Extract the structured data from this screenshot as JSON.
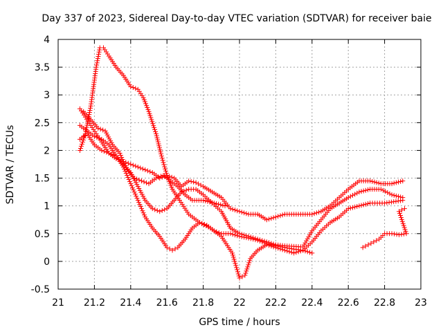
{
  "chart_data": {
    "type": "scatter",
    "title": "Day 337 of 2023, Sidereal Day-to-day VTEC variation (SDTVAR) for receiver baie",
    "xlabel": "GPS time / hours",
    "ylabel": "SDTVAR / TECUs",
    "xlim": [
      21,
      23
    ],
    "ylim": [
      -0.5,
      4
    ],
    "xticks": [
      21,
      21.2,
      21.4,
      21.6,
      21.8,
      22,
      22.2,
      22.4,
      22.6,
      22.8,
      23
    ],
    "xtick_labels": [
      "21",
      "21.2",
      "21.4",
      "21.6",
      "21.8",
      "22",
      "22.2",
      "22.4",
      "22.6",
      "22.8",
      "23"
    ],
    "yticks": [
      -0.5,
      0,
      0.5,
      1,
      1.5,
      2,
      2.5,
      3,
      3.5,
      4
    ],
    "ytick_labels": [
      "-0.5",
      "0",
      "0.5",
      "1",
      "1.5",
      "2",
      "2.5",
      "3",
      "3.5",
      "4"
    ],
    "grid": true,
    "marker": "+",
    "marker_color": "#ff0000",
    "series": [
      {
        "name": "track-1",
        "points": [
          [
            21.12,
            2.0
          ],
          [
            21.15,
            2.3
          ],
          [
            21.18,
            2.8
          ],
          [
            21.21,
            3.5
          ],
          [
            21.23,
            3.85
          ],
          [
            21.25,
            3.85
          ],
          [
            21.28,
            3.7
          ],
          [
            21.32,
            3.5
          ],
          [
            21.36,
            3.35
          ],
          [
            21.4,
            3.15
          ],
          [
            21.44,
            3.1
          ],
          [
            21.47,
            2.95
          ],
          [
            21.5,
            2.7
          ],
          [
            21.54,
            2.3
          ],
          [
            21.57,
            1.9
          ],
          [
            21.6,
            1.55
          ],
          [
            21.63,
            1.3
          ],
          [
            21.67,
            1.1
          ],
          [
            21.72,
            0.85
          ],
          [
            21.78,
            0.7
          ],
          [
            21.84,
            0.6
          ],
          [
            21.9,
            0.45
          ],
          [
            21.96,
            0.15
          ],
          [
            22.0,
            -0.3
          ],
          [
            22.03,
            -0.25
          ],
          [
            22.06,
            0.05
          ],
          [
            22.1,
            0.2
          ],
          [
            22.15,
            0.3
          ],
          [
            22.2,
            0.25
          ],
          [
            22.25,
            0.2
          ],
          [
            22.3,
            0.15
          ],
          [
            22.35,
            0.2
          ],
          [
            22.4,
            0.35
          ],
          [
            22.45,
            0.55
          ],
          [
            22.5,
            0.7
          ],
          [
            22.55,
            0.8
          ],
          [
            22.6,
            0.95
          ],
          [
            22.66,
            1.0
          ],
          [
            22.72,
            1.05
          ],
          [
            22.8,
            1.05
          ],
          [
            22.9,
            1.1
          ]
        ]
      },
      {
        "name": "track-2",
        "points": [
          [
            21.12,
            2.75
          ],
          [
            21.15,
            2.6
          ],
          [
            21.18,
            2.45
          ],
          [
            21.21,
            2.3
          ],
          [
            21.24,
            2.15
          ],
          [
            21.28,
            1.95
          ],
          [
            21.32,
            1.85
          ],
          [
            21.36,
            1.8
          ],
          [
            21.4,
            1.75
          ],
          [
            21.44,
            1.7
          ],
          [
            21.48,
            1.65
          ],
          [
            21.52,
            1.6
          ],
          [
            21.56,
            1.5
          ],
          [
            21.6,
            1.55
          ],
          [
            21.64,
            1.5
          ],
          [
            21.68,
            1.35
          ],
          [
            21.72,
            1.45
          ],
          [
            21.76,
            1.42
          ],
          [
            21.8,
            1.35
          ],
          [
            21.85,
            1.25
          ],
          [
            21.9,
            1.15
          ],
          [
            21.95,
            0.95
          ],
          [
            22.0,
            0.9
          ],
          [
            22.05,
            0.85
          ],
          [
            22.1,
            0.85
          ],
          [
            22.15,
            0.75
          ],
          [
            22.2,
            0.8
          ],
          [
            22.25,
            0.85
          ],
          [
            22.3,
            0.85
          ],
          [
            22.35,
            0.85
          ],
          [
            22.4,
            0.85
          ],
          [
            22.45,
            0.9
          ],
          [
            22.5,
            1.0
          ],
          [
            22.55,
            1.15
          ],
          [
            22.6,
            1.3
          ],
          [
            22.66,
            1.45
          ],
          [
            22.72,
            1.45
          ],
          [
            22.78,
            1.4
          ],
          [
            22.84,
            1.4
          ],
          [
            22.9,
            1.45
          ]
        ]
      },
      {
        "name": "track-3",
        "points": [
          [
            21.12,
            2.2
          ],
          [
            21.16,
            2.3
          ],
          [
            21.2,
            2.1
          ],
          [
            21.24,
            2.0
          ],
          [
            21.28,
            1.95
          ],
          [
            21.32,
            1.9
          ],
          [
            21.36,
            1.75
          ],
          [
            21.4,
            1.6
          ],
          [
            21.44,
            1.35
          ],
          [
            21.48,
            1.1
          ],
          [
            21.52,
            0.95
          ],
          [
            21.56,
            0.9
          ],
          [
            21.6,
            0.95
          ],
          [
            21.64,
            1.1
          ],
          [
            21.68,
            1.25
          ],
          [
            21.72,
            1.3
          ],
          [
            21.76,
            1.3
          ],
          [
            21.8,
            1.2
          ],
          [
            21.85,
            1.05
          ],
          [
            21.9,
            0.9
          ],
          [
            21.95,
            0.6
          ],
          [
            22.0,
            0.5
          ],
          [
            22.05,
            0.45
          ],
          [
            22.1,
            0.4
          ],
          [
            22.15,
            0.35
          ],
          [
            22.2,
            0.3
          ],
          [
            22.25,
            0.28
          ],
          [
            22.3,
            0.27
          ],
          [
            22.35,
            0.26
          ],
          [
            22.4,
            0.55
          ],
          [
            22.45,
            0.75
          ],
          [
            22.5,
            0.95
          ],
          [
            22.55,
            1.05
          ],
          [
            22.6,
            1.15
          ],
          [
            22.66,
            1.25
          ],
          [
            22.72,
            1.3
          ],
          [
            22.78,
            1.3
          ],
          [
            22.84,
            1.2
          ],
          [
            22.9,
            1.15
          ]
        ]
      },
      {
        "name": "track-4",
        "points": [
          [
            21.12,
            2.45
          ],
          [
            21.16,
            2.35
          ],
          [
            21.2,
            2.25
          ],
          [
            21.24,
            2.2
          ],
          [
            21.28,
            2.1
          ],
          [
            21.32,
            1.9
          ],
          [
            21.36,
            1.7
          ],
          [
            21.4,
            1.4
          ],
          [
            21.44,
            1.1
          ],
          [
            21.48,
            0.8
          ],
          [
            21.52,
            0.6
          ],
          [
            21.56,
            0.45
          ],
          [
            21.6,
            0.25
          ],
          [
            21.63,
            0.2
          ],
          [
            21.66,
            0.25
          ],
          [
            21.7,
            0.4
          ],
          [
            21.74,
            0.6
          ],
          [
            21.78,
            0.7
          ],
          [
            21.82,
            0.65
          ],
          [
            21.86,
            0.55
          ],
          [
            21.9,
            0.5
          ],
          [
            21.95,
            0.5
          ],
          [
            22.0,
            0.45
          ],
          [
            22.05,
            0.42
          ],
          [
            22.1,
            0.38
          ],
          [
            22.15,
            0.32
          ],
          [
            22.2,
            0.28
          ],
          [
            22.25,
            0.25
          ],
          [
            22.3,
            0.22
          ],
          [
            22.35,
            0.2
          ],
          [
            22.4,
            0.15
          ]
        ]
      },
      {
        "name": "track-5",
        "points": [
          [
            21.14,
            2.7
          ],
          [
            21.18,
            2.55
          ],
          [
            21.22,
            2.4
          ],
          [
            21.26,
            2.35
          ],
          [
            21.3,
            2.1
          ],
          [
            21.34,
            1.95
          ],
          [
            21.38,
            1.65
          ],
          [
            21.42,
            1.5
          ],
          [
            21.46,
            1.45
          ],
          [
            21.5,
            1.4
          ],
          [
            21.54,
            1.5
          ],
          [
            21.58,
            1.55
          ],
          [
            21.62,
            1.45
          ],
          [
            21.66,
            1.35
          ],
          [
            21.7,
            1.2
          ],
          [
            21.74,
            1.1
          ],
          [
            21.8,
            1.1
          ],
          [
            21.86,
            1.05
          ],
          [
            21.92,
            1.0
          ]
        ]
      },
      {
        "name": "track-6",
        "points": [
          [
            22.68,
            0.25
          ],
          [
            22.71,
            0.3
          ],
          [
            22.74,
            0.35
          ],
          [
            22.77,
            0.4
          ],
          [
            22.8,
            0.5
          ],
          [
            22.84,
            0.5
          ],
          [
            22.88,
            0.48
          ],
          [
            22.92,
            0.5
          ],
          [
            22.88,
            0.9
          ],
          [
            22.91,
            0.95
          ]
        ]
      }
    ]
  }
}
